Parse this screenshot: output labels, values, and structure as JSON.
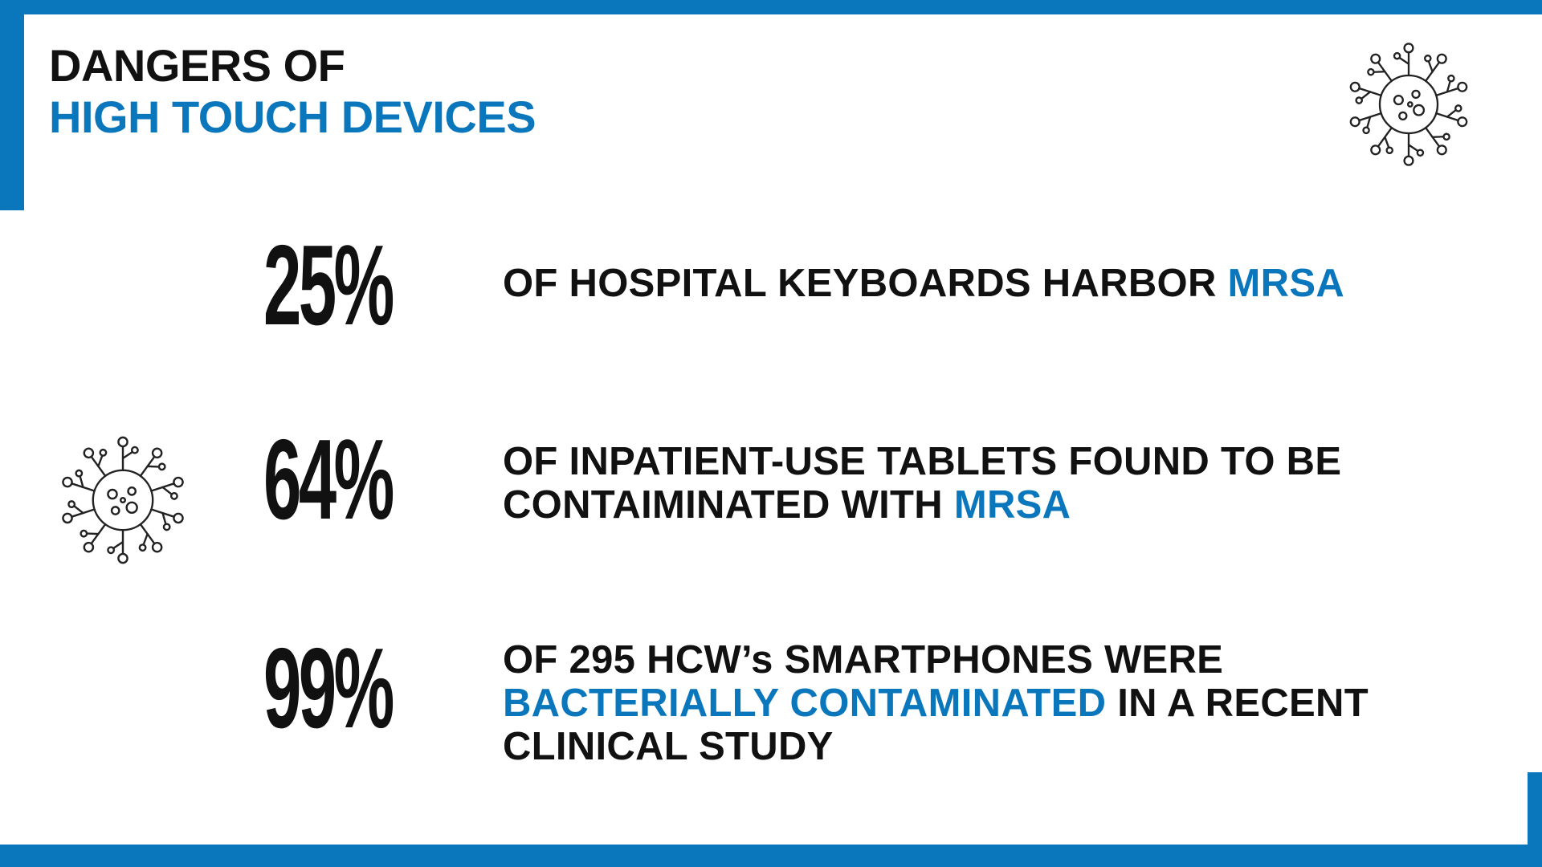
{
  "header": {
    "title_line1": "DANGERS OF",
    "title_line2": "HIGH TOUCH DEVICES"
  },
  "colors": {
    "accent": "#0a77bd",
    "text": "#111111",
    "background": "#ffffff"
  },
  "icons": {
    "top_right": "virus-icon",
    "left": "virus-icon"
  },
  "stats": [
    {
      "value": "25%",
      "line1_pre": "OF HOSPITAL KEYBOARDS HARBOR ",
      "line1_hl": "MRSA"
    },
    {
      "value": "64%",
      "line1": "OF INPATIENT-USE TABLETS FOUND TO BE",
      "line2_pre": "CONTAIMINATED WITH ",
      "line2_hl": "MRSA"
    },
    {
      "value": "99%",
      "line1": "OF 295 HCW’s SMARTPHONES WERE",
      "line2_hl": "BACTERIALLY CONTAMINATED",
      "line2_post": " IN A RECENT",
      "line3": "CLINICAL STUDY"
    }
  ]
}
